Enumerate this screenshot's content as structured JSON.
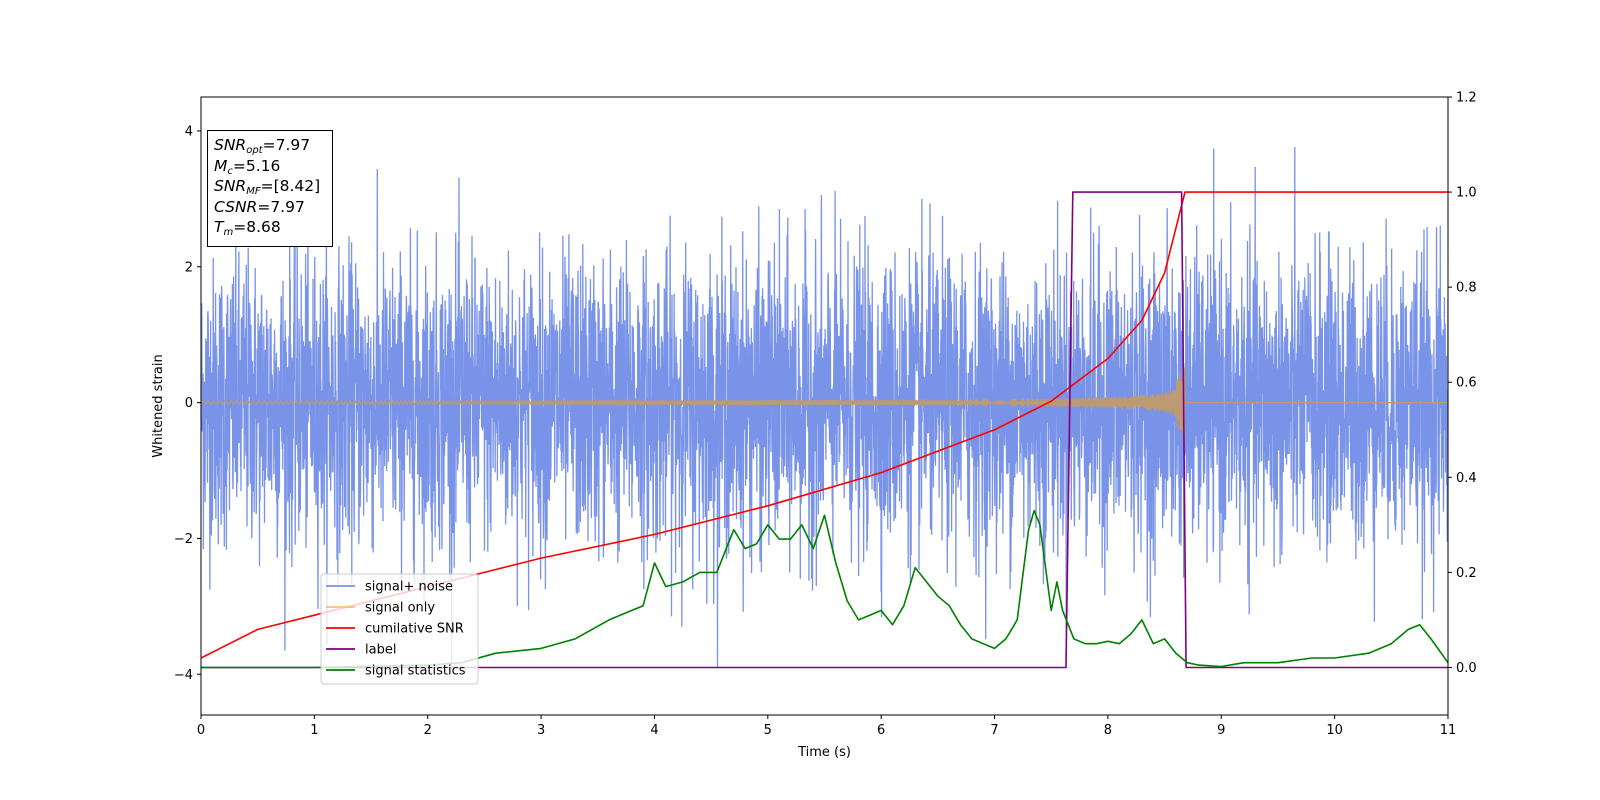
{
  "chart_data": {
    "type": "line",
    "xlabel": "Time (s)",
    "ylabel": "Whitened strain",
    "xlim": [
      0,
      11
    ],
    "ylim": [
      -4.6,
      4.5
    ],
    "y2lim": [
      -0.1,
      1.2
    ],
    "x_ticks": [
      "0",
      "1",
      "2",
      "3",
      "4",
      "5",
      "6",
      "7",
      "8",
      "9",
      "10",
      "11"
    ],
    "y_ticks": [
      "4",
      "2",
      "0",
      "−2",
      "−4"
    ],
    "y2_ticks": [
      "1.2",
      "1.0",
      "0.8",
      "0.6",
      "0.4",
      "0.2",
      "0.0"
    ],
    "legend_position": "lower-left",
    "annotation": {
      "snr_opt": {
        "sym": "SNR",
        "sub": "opt",
        "value": "=7.97"
      },
      "mc": {
        "sym": "M",
        "sub": "c",
        "value": "=5.16"
      },
      "snr_mf": {
        "sym": "SNR",
        "sub": "MF",
        "value": "=[8.42]"
      },
      "csnr": {
        "sym": "CSNR",
        "value": "=7.97"
      },
      "tm": {
        "sym": "T",
        "sub": "m",
        "value": "=8.68"
      }
    },
    "series": [
      {
        "name": "signal+ noise",
        "color": "#7893e8",
        "axis": "left",
        "description": "noisy whitened strain, amplitude up to about ±4"
      },
      {
        "name": "signal only",
        "color": "#ffbb78",
        "axis": "left",
        "description": "chirp, amplitude growing to ~0.7 at t=8.68 then 0"
      },
      {
        "name": "cumilative SNR",
        "color": "#ff0000",
        "axis": "right",
        "x": [
          0,
          0.5,
          1,
          2,
          3,
          4,
          5,
          6,
          7,
          7.5,
          8,
          8.3,
          8.5,
          8.68,
          11
        ],
        "y": [
          0.02,
          0.08,
          0.11,
          0.17,
          0.23,
          0.28,
          0.34,
          0.41,
          0.5,
          0.56,
          0.65,
          0.73,
          0.83,
          1.0,
          1.0
        ]
      },
      {
        "name": "label",
        "color": "#800080",
        "axis": "right",
        "x": [
          0,
          7.63,
          7.69,
          8.65,
          8.69,
          11
        ],
        "y": [
          0,
          0,
          1,
          1,
          0,
          0
        ]
      },
      {
        "name": "signal statistics",
        "color": "#008000",
        "axis": "right",
        "x": [
          0,
          1,
          2,
          2.3,
          2.6,
          3.0,
          3.3,
          3.6,
          3.9,
          4.0,
          4.1,
          4.25,
          4.4,
          4.55,
          4.7,
          4.8,
          4.9,
          5.0,
          5.1,
          5.2,
          5.3,
          5.4,
          5.5,
          5.6,
          5.7,
          5.8,
          5.9,
          6.0,
          6.1,
          6.2,
          6.3,
          6.4,
          6.5,
          6.6,
          6.7,
          6.8,
          6.9,
          7.0,
          7.1,
          7.2,
          7.3,
          7.35,
          7.4,
          7.5,
          7.55,
          7.6,
          7.7,
          7.8,
          7.9,
          8.0,
          8.1,
          8.2,
          8.3,
          8.4,
          8.5,
          8.6,
          8.7,
          8.8,
          9.0,
          9.2,
          9.5,
          9.8,
          10.0,
          10.3,
          10.5,
          10.65,
          10.75,
          10.85,
          11.0
        ],
        "y": [
          0,
          0,
          0.005,
          0.01,
          0.03,
          0.04,
          0.06,
          0.1,
          0.13,
          0.22,
          0.17,
          0.18,
          0.2,
          0.2,
          0.29,
          0.25,
          0.26,
          0.3,
          0.27,
          0.27,
          0.3,
          0.25,
          0.32,
          0.22,
          0.14,
          0.1,
          0.11,
          0.12,
          0.09,
          0.13,
          0.21,
          0.18,
          0.15,
          0.13,
          0.09,
          0.06,
          0.05,
          0.04,
          0.06,
          0.1,
          0.29,
          0.33,
          0.3,
          0.12,
          0.18,
          0.12,
          0.06,
          0.05,
          0.05,
          0.055,
          0.05,
          0.07,
          0.1,
          0.05,
          0.06,
          0.03,
          0.01,
          0.005,
          0.002,
          0.01,
          0.01,
          0.02,
          0.02,
          0.03,
          0.05,
          0.08,
          0.09,
          0.06,
          0.01
        ]
      }
    ]
  }
}
